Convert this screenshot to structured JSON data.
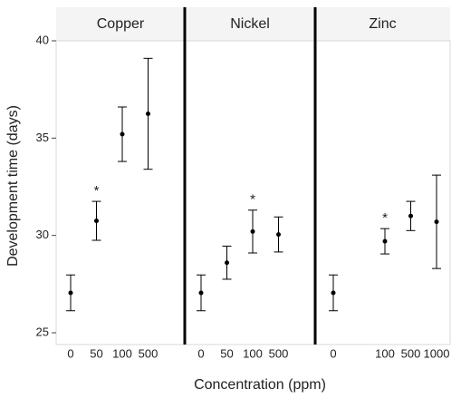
{
  "chart_data": {
    "type": "errorbar",
    "ylabel": "Development time (days)",
    "xlabel": "Concentration (ppm)",
    "ylim": [
      25,
      40
    ],
    "yticks": [
      25,
      30,
      35,
      40
    ],
    "color": "#000000",
    "panels": [
      {
        "title": "Copper",
        "categories": [
          "0",
          "50",
          "100",
          "500"
        ],
        "values": [
          27.05,
          30.75,
          35.2,
          36.25
        ],
        "errors": [
          0.92,
          1.0,
          1.4,
          2.85
        ],
        "marks": [
          null,
          "*",
          null,
          null
        ]
      },
      {
        "title": "Nickel",
        "categories": [
          "0",
          "50",
          "100",
          "500"
        ],
        "values": [
          27.05,
          28.6,
          30.2,
          30.05
        ],
        "errors": [
          0.92,
          0.85,
          1.1,
          0.9
        ],
        "marks": [
          null,
          null,
          "*",
          null
        ]
      },
      {
        "title": "Zinc",
        "categories": [
          "0",
          null,
          "100",
          "500",
          "1000"
        ],
        "values": [
          27.05,
          null,
          29.7,
          31.0,
          30.7
        ],
        "errors": [
          0.92,
          null,
          0.65,
          0.75,
          2.4
        ],
        "marks": [
          null,
          null,
          "*",
          null,
          null
        ]
      }
    ]
  }
}
